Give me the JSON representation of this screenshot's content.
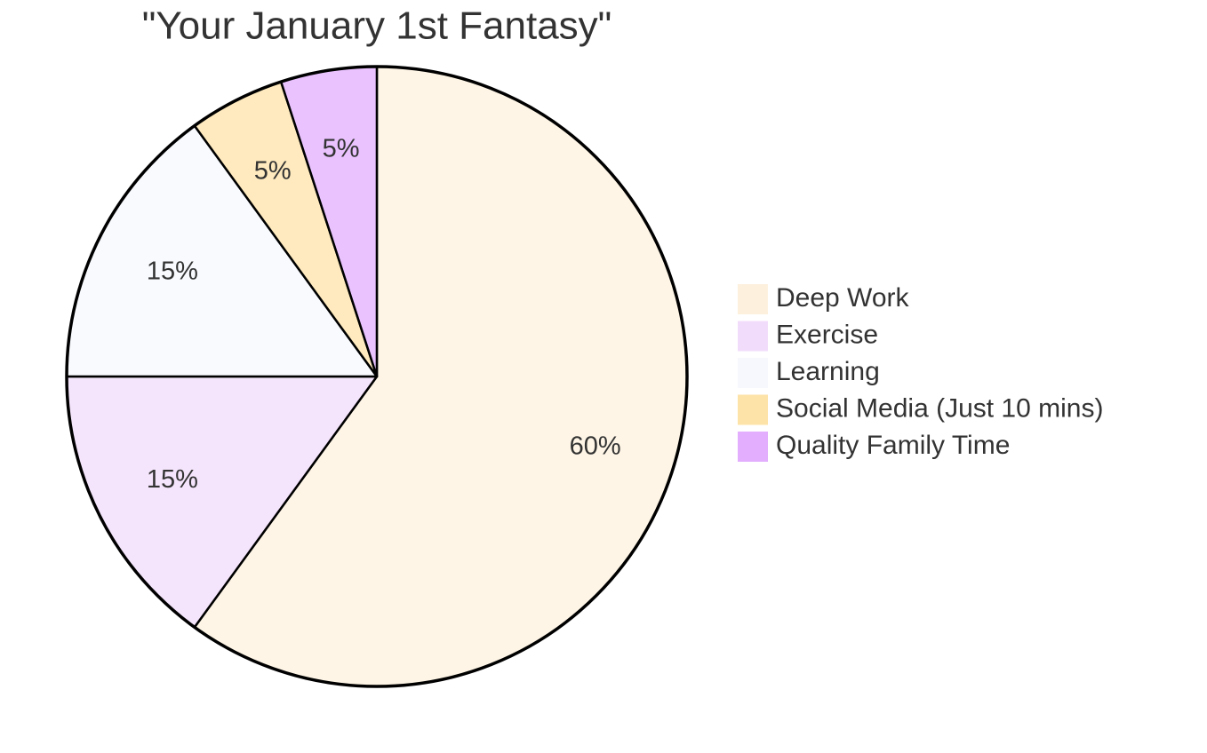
{
  "chart_data": {
    "type": "pie",
    "title": "\"Your January 1st Fantasy\"",
    "categories": [
      "Deep Work",
      "Exercise",
      "Learning",
      "Social Media (Just 10 mins)",
      "Quality Family Time"
    ],
    "values": [
      60,
      15,
      15,
      5,
      5
    ],
    "value_labels": [
      "60%",
      "15%",
      "15%",
      "5%",
      "5%"
    ],
    "colors": [
      "#fdf1de",
      "#f2dcfb",
      "#f6f8fe",
      "#fde3a8",
      "#e2aefd"
    ],
    "legend": "right"
  }
}
